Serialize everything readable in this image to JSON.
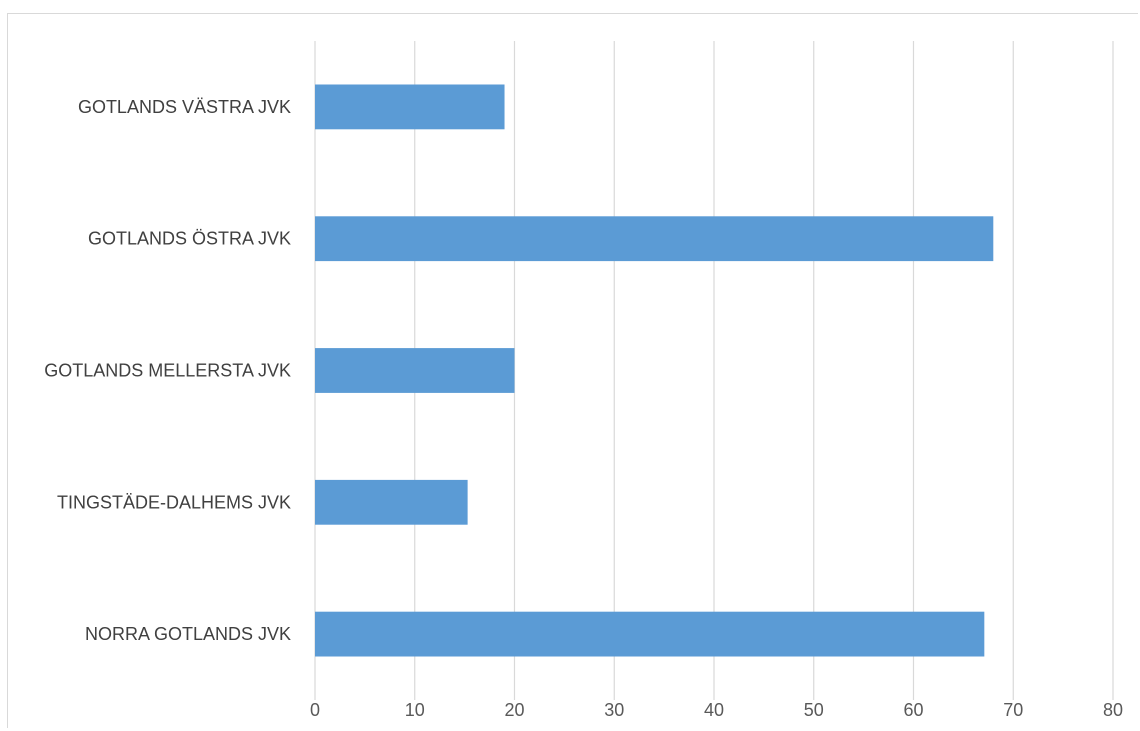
{
  "chart_data": {
    "type": "bar",
    "orientation": "horizontal",
    "title": "",
    "xlabel": "",
    "ylabel": "",
    "categories": [
      "GOTLANDS VÄSTRA JVK",
      "GOTLANDS ÖSTRA JVK",
      "GOTLANDS MELLERSTA JVK",
      "TINGSTÄDE-DALHEMS JVK",
      "NORRA GOTLANDS JVK"
    ],
    "values": [
      19,
      68,
      20,
      15.3,
      67.1
    ],
    "xlim": [
      0,
      80
    ],
    "xticks": [
      "0",
      "10",
      "20",
      "30",
      "40",
      "50",
      "60",
      "70",
      "80"
    ],
    "grid": "vertical",
    "legend": "none",
    "bar_color": "#5b9bd5",
    "grid_color": "#d9d9d9"
  }
}
